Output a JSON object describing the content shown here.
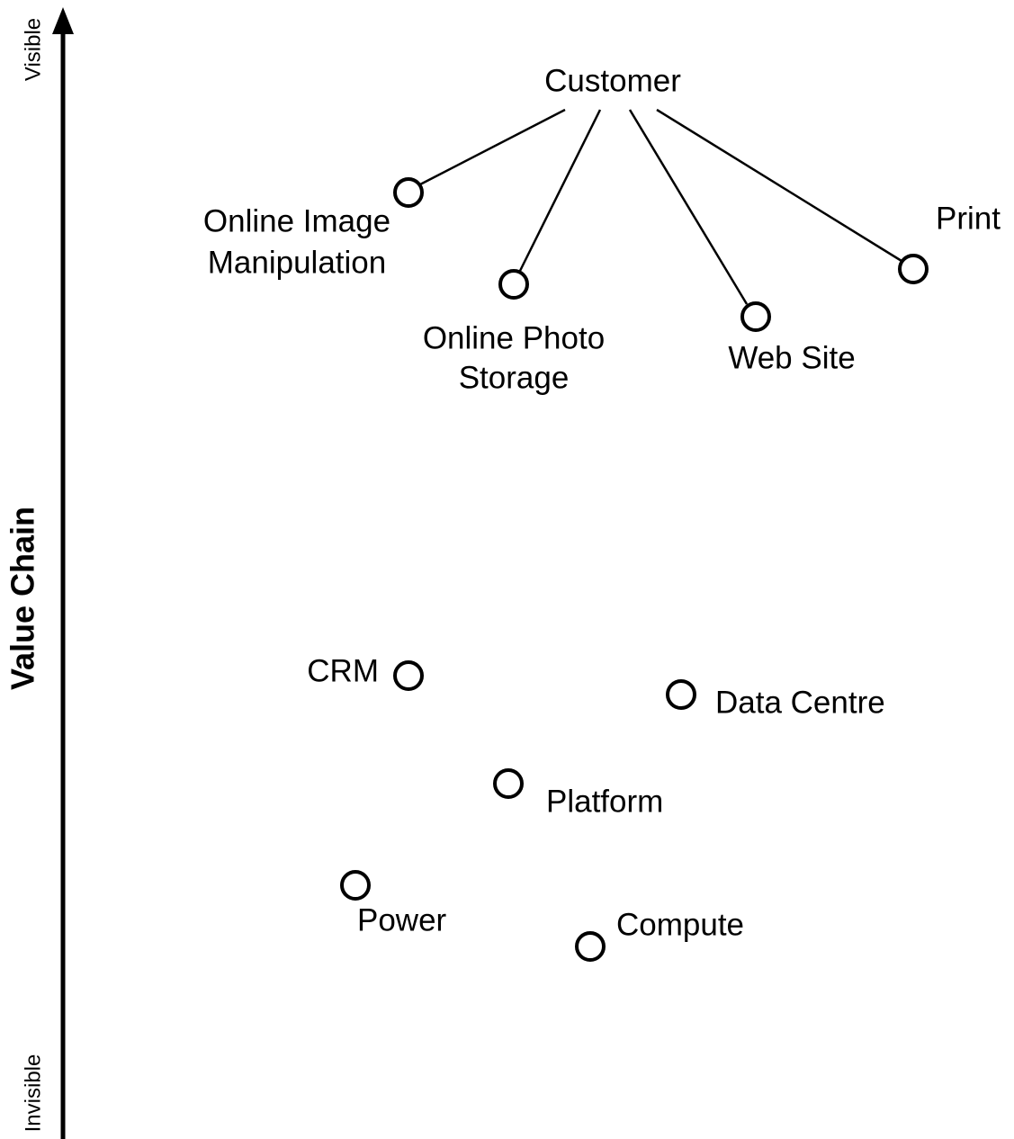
{
  "axis": {
    "label": "Value Chain",
    "top": "Visible",
    "bottom": "Invisible"
  },
  "root": "Customer",
  "nodes": [
    {
      "label": [
        "Online Image",
        "Manipulation"
      ]
    },
    {
      "label": [
        "Online Photo",
        "Storage"
      ]
    },
    {
      "label": [
        "Web Site"
      ]
    },
    {
      "label": [
        "Print"
      ]
    },
    {
      "label": [
        "CRM"
      ]
    },
    {
      "label": [
        "Data Centre"
      ]
    },
    {
      "label": [
        "Platform"
      ]
    },
    {
      "label": [
        "Power"
      ]
    },
    {
      "label": [
        "Compute"
      ]
    }
  ]
}
